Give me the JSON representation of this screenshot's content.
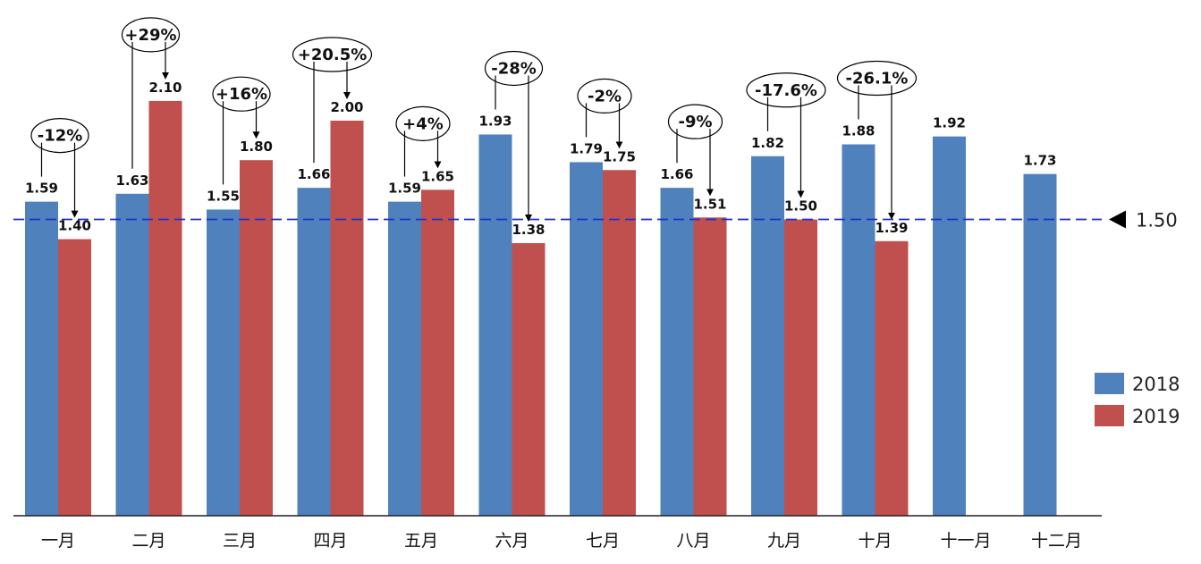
{
  "chart_data": {
    "type": "bar",
    "title": "",
    "xlabel": "",
    "ylabel": "",
    "ylim": [
      0,
      2.25
    ],
    "grid": false,
    "legend_position": "right",
    "categories": [
      "一月",
      "二月",
      "三月",
      "四月",
      "五月",
      "六月",
      "七月",
      "八月",
      "九月",
      "十月",
      "十一月",
      "十二月"
    ],
    "series": [
      {
        "name": "2018",
        "color": "#4F81BD",
        "values": [
          1.59,
          1.63,
          1.55,
          1.66,
          1.59,
          1.93,
          1.79,
          1.66,
          1.82,
          1.88,
          1.92,
          1.73
        ],
        "labels": [
          "1.59",
          "1.63",
          "1.55",
          "1.66",
          "1.59",
          "1.93",
          "1.79",
          "1.66",
          "1.82",
          "1.88",
          "1.92",
          "1.73"
        ]
      },
      {
        "name": "2019",
        "color": "#C0504D",
        "values": [
          1.4,
          2.1,
          1.8,
          2.0,
          1.65,
          1.38,
          1.75,
          1.51,
          1.5,
          1.39,
          null,
          null
        ],
        "labels": [
          "1.40",
          "2.10",
          "1.80",
          "2.00",
          "1.65",
          "1.38",
          "1.75",
          "1.51",
          "1.50",
          "1.39",
          "",
          ""
        ]
      }
    ],
    "reference_line": {
      "value": 1.5,
      "label": "1.50",
      "color": "#1F2FCF",
      "style": "dashed"
    },
    "annotations": [
      "-12%",
      "+29%",
      "+16%",
      "+20.5%",
      "+4%",
      "-28%",
      "-2%",
      "-9%",
      "-17.6%",
      "-26.1%"
    ]
  }
}
